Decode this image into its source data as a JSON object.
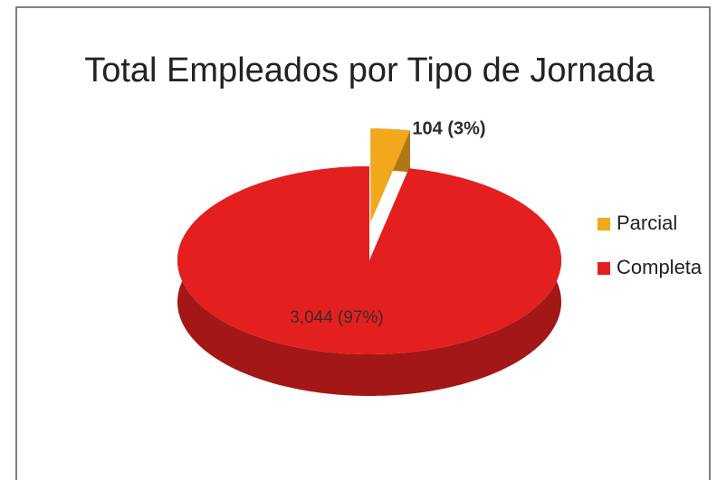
{
  "chart_data": {
    "type": "pie",
    "title": "Total Empleados por Tipo de Jornada",
    "categories": [
      "Parcial",
      "Completa"
    ],
    "values": [
      104,
      3044
    ],
    "value_labels": [
      "104 (3%)",
      "3,044 (97%)"
    ],
    "colors": [
      "#f2a81d",
      "#e3201f"
    ],
    "exploded": [
      true,
      false
    ],
    "legend": "right"
  }
}
